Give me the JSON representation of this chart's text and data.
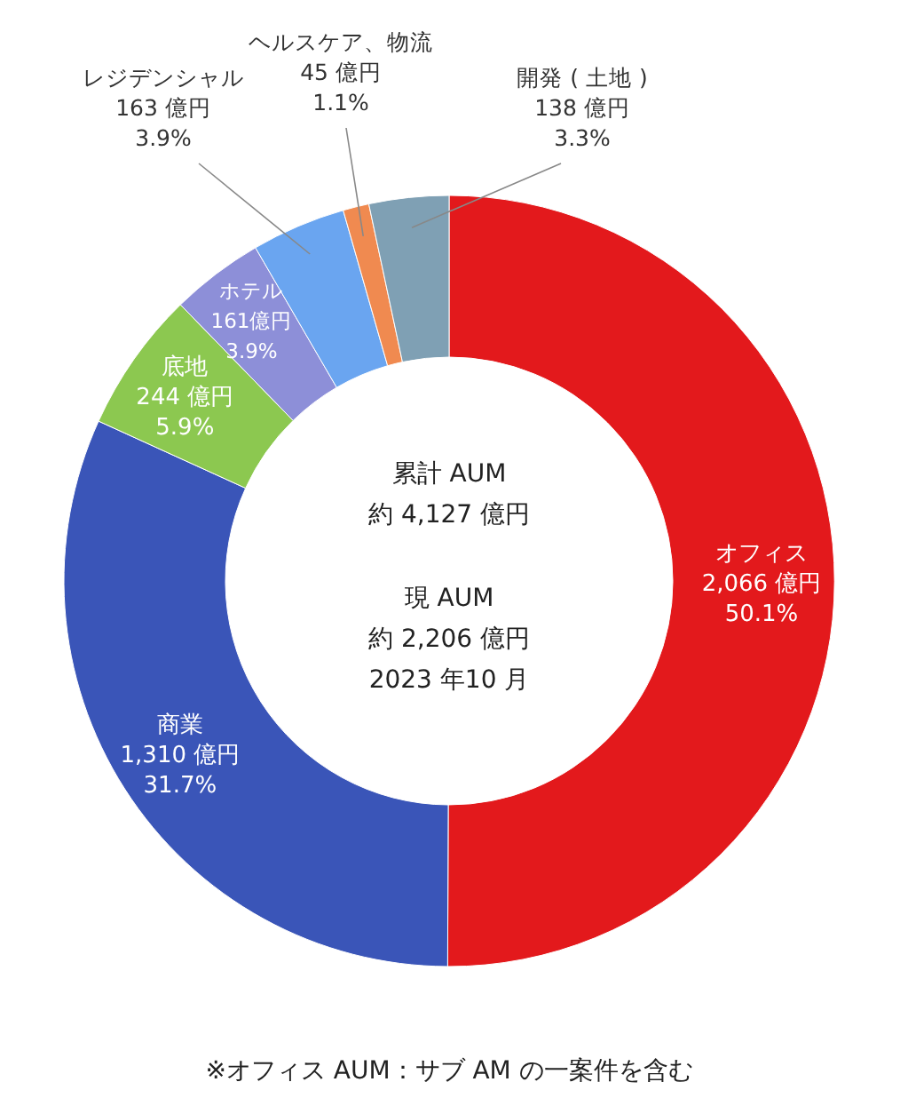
{
  "chart_data": {
    "type": "donut",
    "categories": [
      "オフィス",
      "商業",
      "底地",
      "ホテル",
      "レジデンシャル",
      "ヘルスケア、物流",
      "開発 ( 土地 )"
    ],
    "values": [
      2066,
      1310,
      244,
      161,
      163,
      45,
      138
    ],
    "colors": [
      "#e3191c",
      "#3a55b8",
      "#8cc850",
      "#8d8fd8",
      "#6aa5f0",
      "#f08a50",
      "#7fa0b4"
    ],
    "value_labels": [
      "2,066 億円\n50.1%",
      "1,310 億円\n31.7%",
      "244 億円\n5.9%",
      "161億円\n3.9%",
      "163 億円\n3.9%",
      "45 億円\n1.1%",
      "138 億円\n3.3%"
    ],
    "annotations": [
      "累計 AUM",
      "約 4,127 億円",
      "現 AUM",
      "約 2,206 億円",
      "2023 年10 月",
      "※オフィス AUM：サブ AM の一案件を含む"
    ]
  }
}
